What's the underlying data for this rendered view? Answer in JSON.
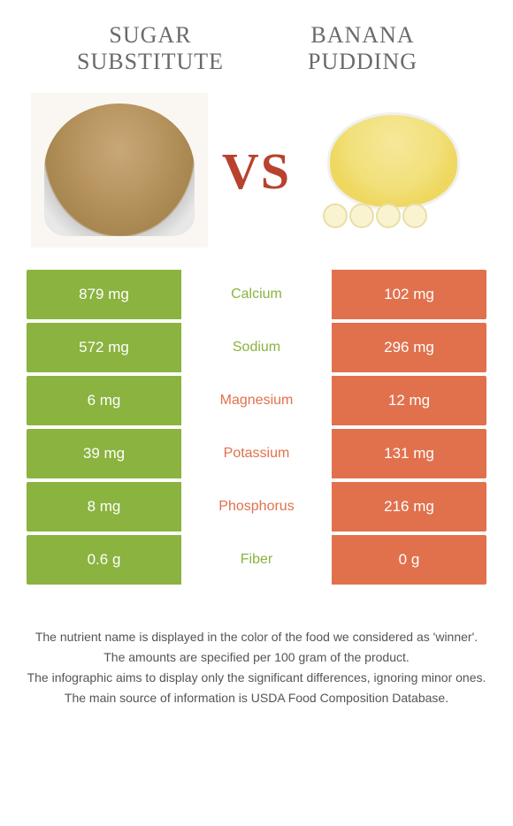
{
  "left_title": "Sugar substitute",
  "right_title": "Banana pudding",
  "vs_label": "VS",
  "colors": {
    "green": "#8ab33f",
    "orange": "#e1714d",
    "vs": "#b8422e"
  },
  "rows": [
    {
      "nutrient": "Calcium",
      "left": "879 mg",
      "right": "102 mg",
      "winner": "left"
    },
    {
      "nutrient": "Sodium",
      "left": "572 mg",
      "right": "296 mg",
      "winner": "left"
    },
    {
      "nutrient": "Magnesium",
      "left": "6 mg",
      "right": "12 mg",
      "winner": "right"
    },
    {
      "nutrient": "Potassium",
      "left": "39 mg",
      "right": "131 mg",
      "winner": "right"
    },
    {
      "nutrient": "Phosphorus",
      "left": "8 mg",
      "right": "216 mg",
      "winner": "right"
    },
    {
      "nutrient": "Fiber",
      "left": "0.6 g",
      "right": "0 g",
      "winner": "left"
    }
  ],
  "footer": [
    "The nutrient name is displayed in the color of the food we considered as 'winner'.",
    "The amounts are specified per 100 gram of the product.",
    "The infographic aims to display only the significant differences, ignoring minor ones.",
    "The main source of information is USDA Food Composition Database."
  ]
}
